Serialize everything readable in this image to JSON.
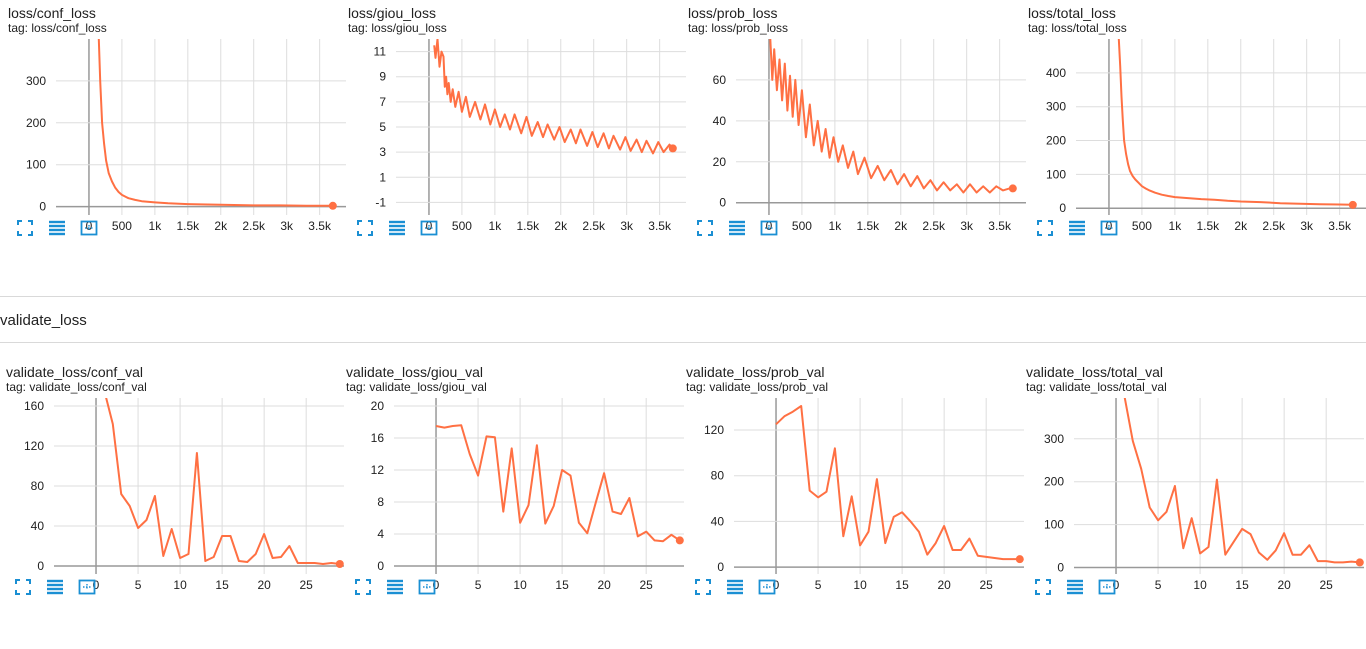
{
  "section2_title": "validate_loss",
  "colors": {
    "line": "#ff7043",
    "grid": "#dddddd",
    "zero": "#999999",
    "toolbar": "#1a8fd3"
  },
  "toolbar_icons": [
    "fit-to-screen-icon",
    "toggle-log-icon",
    "reset-zoom-icon"
  ],
  "cards": [
    {
      "title": "loss/conf_loss",
      "tag": "tag: loss/conf_loss"
    },
    {
      "title": "loss/giou_loss",
      "tag": "tag: loss/giou_loss"
    },
    {
      "title": "loss/prob_loss",
      "tag": "tag: loss/prob_loss"
    },
    {
      "title": "loss/total_loss",
      "tag": "tag: loss/total_loss"
    },
    {
      "title": "validate_loss/conf_val",
      "tag": "tag: validate_loss/conf_val"
    },
    {
      "title": "validate_loss/giou_val",
      "tag": "tag: validate_loss/giou_val"
    },
    {
      "title": "validate_loss/prob_val",
      "tag": "tag: validate_loss/prob_val"
    },
    {
      "title": "validate_loss/total_val",
      "tag": "tag: validate_loss/total_val"
    }
  ],
  "chart_data": [
    {
      "type": "line",
      "xlim": [
        -500,
        3900
      ],
      "ylim": [
        -20,
        400
      ],
      "xticks": [
        0,
        500,
        1000,
        1500,
        2000,
        2500,
        3000,
        3500
      ],
      "xticklabels": [
        "0",
        "500",
        "1k",
        "1.5k",
        "2k",
        "2.5k",
        "3k",
        "3.5k"
      ],
      "yticks": [
        0,
        100,
        200,
        300
      ],
      "yticklabels": [
        "0",
        "100",
        "200",
        "300"
      ],
      "series": [
        {
          "x": [
            150,
            170,
            200,
            230,
            260,
            300,
            350,
            400,
            450,
            500,
            600,
            700,
            800,
            1000,
            1200,
            1500,
            1800,
            2100,
            2500,
            2900,
            3300,
            3700
          ],
          "y": [
            400,
            300,
            200,
            150,
            110,
            80,
            60,
            45,
            35,
            28,
            20,
            16,
            13,
            10,
            8,
            6,
            5,
            4,
            3,
            3,
            2,
            2
          ]
        }
      ]
    },
    {
      "type": "line",
      "xlim": [
        -500,
        3900
      ],
      "ylim": [
        -2,
        12
      ],
      "xticks": [
        0,
        500,
        1000,
        1500,
        2000,
        2500,
        3000,
        3500
      ],
      "xticklabels": [
        "0",
        "500",
        "1k",
        "1.5k",
        "2k",
        "2.5k",
        "3k",
        "3.5k"
      ],
      "yticks": [
        -1,
        1,
        3,
        5,
        7,
        9,
        11
      ],
      "yticklabels": [
        "-1",
        "1",
        "3",
        "5",
        "7",
        "9",
        "11"
      ],
      "series": [
        {
          "x": [
            80,
            100,
            130,
            160,
            190,
            220,
            240,
            260,
            280,
            300,
            330,
            360,
            400,
            450,
            500,
            560,
            620,
            700,
            780,
            850,
            930,
            1000,
            1080,
            1150,
            1230,
            1300,
            1400,
            1480,
            1560,
            1650,
            1730,
            1800,
            1900,
            1980,
            2060,
            2150,
            2230,
            2300,
            2400,
            2480,
            2560,
            2650,
            2730,
            2800,
            2900,
            2980,
            3060,
            3150,
            3230,
            3300,
            3400,
            3480,
            3560,
            3650,
            3700
          ],
          "y": [
            11.5,
            10.5,
            12,
            9.8,
            11,
            10.6,
            8.2,
            9,
            7.6,
            8.5,
            7,
            8,
            6.6,
            7.8,
            6.2,
            7.4,
            5.8,
            7,
            5.6,
            6.8,
            5.2,
            6.4,
            5,
            6,
            4.8,
            6,
            4.5,
            5.8,
            4.3,
            5.4,
            4.2,
            5.2,
            4,
            5,
            3.8,
            4.8,
            3.7,
            4.8,
            3.5,
            4.6,
            3.4,
            4.5,
            3.3,
            4.3,
            3.2,
            4.2,
            3.1,
            4,
            3,
            3.9,
            2.9,
            3.8,
            3,
            3.6,
            3.3
          ]
        }
      ]
    },
    {
      "type": "line",
      "xlim": [
        -500,
        3900
      ],
      "ylim": [
        -6,
        80
      ],
      "xticks": [
        0,
        500,
        1000,
        1500,
        2000,
        2500,
        3000,
        3500
      ],
      "xticklabels": [
        "0",
        "500",
        "1k",
        "1.5k",
        "2k",
        "2.5k",
        "3k",
        "3.5k"
      ],
      "yticks": [
        0,
        20,
        40,
        60
      ],
      "yticklabels": [
        "0",
        "20",
        "40",
        "60"
      ],
      "series": [
        {
          "x": [
            20,
            50,
            80,
            120,
            160,
            200,
            240,
            280,
            320,
            360,
            400,
            450,
            500,
            560,
            620,
            680,
            740,
            800,
            860,
            920,
            980,
            1050,
            1120,
            1200,
            1280,
            1350,
            1450,
            1550,
            1650,
            1750,
            1850,
            1950,
            2050,
            2150,
            2250,
            2350,
            2450,
            2550,
            2650,
            2750,
            2850,
            2950,
            3050,
            3150,
            3250,
            3350,
            3450,
            3550,
            3650,
            3700
          ],
          "y": [
            80,
            60,
            75,
            55,
            70,
            50,
            68,
            45,
            62,
            42,
            60,
            38,
            55,
            32,
            48,
            28,
            40,
            25,
            36,
            22,
            32,
            20,
            28,
            17,
            25,
            14,
            22,
            12,
            18,
            11,
            16,
            9,
            14,
            8,
            13,
            7,
            11,
            6,
            10,
            6,
            9,
            5,
            9,
            5,
            8,
            5,
            8,
            6,
            7,
            7
          ]
        }
      ]
    },
    {
      "type": "line",
      "xlim": [
        -500,
        3900
      ],
      "ylim": [
        -20,
        500
      ],
      "xticks": [
        0,
        500,
        1000,
        1500,
        2000,
        2500,
        3000,
        3500
      ],
      "xticklabels": [
        "0",
        "500",
        "1k",
        "1.5k",
        "2k",
        "2.5k",
        "3k",
        "3.5k"
      ],
      "yticks": [
        0,
        100,
        200,
        300,
        400
      ],
      "yticklabels": [
        "0",
        "100",
        "200",
        "300",
        "400"
      ],
      "series": [
        {
          "x": [
            150,
            170,
            190,
            210,
            230,
            260,
            290,
            320,
            360,
            400,
            450,
            500,
            560,
            620,
            700,
            800,
            900,
            1000,
            1200,
            1400,
            1600,
            1800,
            2000,
            2300,
            2600,
            2900,
            3200,
            3500,
            3700
          ],
          "y": [
            500,
            420,
            330,
            260,
            200,
            160,
            130,
            110,
            95,
            85,
            75,
            65,
            58,
            52,
            46,
            40,
            36,
            33,
            30,
            27,
            25,
            22,
            20,
            18,
            15,
            13,
            12,
            11,
            10
          ]
        }
      ]
    },
    {
      "type": "line",
      "xlim": [
        -5,
        29.5
      ],
      "ylim": [
        -8,
        168
      ],
      "xticks": [
        0,
        5,
        10,
        15,
        20,
        25
      ],
      "xticklabels": [
        "0",
        "5",
        "10",
        "15",
        "20",
        "25"
      ],
      "yticks": [
        0,
        40,
        80,
        120,
        160
      ],
      "yticklabels": [
        "0",
        "40",
        "80",
        "120",
        "160"
      ],
      "series": [
        {
          "x": [
            1,
            2,
            3,
            4,
            5,
            6,
            7,
            8,
            9,
            10,
            11,
            12,
            13,
            14,
            15,
            16,
            17,
            18,
            19,
            20,
            21,
            22,
            23,
            24,
            25,
            26,
            27,
            28,
            29
          ],
          "y": [
            175,
            142,
            72,
            60,
            38,
            46,
            70,
            10,
            37,
            8,
            12,
            113,
            5,
            9,
            30,
            30,
            5,
            4,
            12,
            32,
            8,
            9,
            20,
            3,
            3,
            3,
            2,
            3,
            2
          ]
        }
      ]
    },
    {
      "type": "line",
      "xlim": [
        -5,
        29.5
      ],
      "ylim": [
        -1,
        21
      ],
      "xticks": [
        0,
        5,
        10,
        15,
        20,
        25
      ],
      "xticklabels": [
        "0",
        "5",
        "10",
        "15",
        "20",
        "25"
      ],
      "yticks": [
        0,
        4,
        8,
        12,
        16,
        20
      ],
      "yticklabels": [
        "0",
        "4",
        "8",
        "12",
        "16",
        "20"
      ],
      "series": [
        {
          "x": [
            0,
            1,
            2,
            3,
            4,
            5,
            6,
            7,
            8,
            9,
            10,
            11,
            12,
            13,
            14,
            15,
            16,
            17,
            18,
            19,
            20,
            21,
            22,
            23,
            24,
            25,
            26,
            27,
            28,
            29
          ],
          "y": [
            17.5,
            17.3,
            17.5,
            17.6,
            14,
            11.3,
            16.2,
            16.1,
            6.8,
            14.7,
            5.4,
            7.6,
            15.1,
            5.3,
            7.5,
            12,
            11.3,
            5.4,
            4.1,
            7.9,
            11.6,
            6.8,
            6.5,
            8.5,
            3.7,
            4.3,
            3.2,
            3.1,
            3.9,
            3.2
          ]
        }
      ]
    },
    {
      "type": "line",
      "xlim": [
        -5,
        29.5
      ],
      "ylim": [
        -6,
        148
      ],
      "xticks": [
        0,
        5,
        10,
        15,
        20,
        25
      ],
      "xticklabels": [
        "0",
        "5",
        "10",
        "15",
        "20",
        "25"
      ],
      "yticks": [
        0,
        40,
        80,
        120
      ],
      "yticklabels": [
        "0",
        "40",
        "80",
        "120"
      ],
      "series": [
        {
          "x": [
            0,
            1,
            2,
            3,
            4,
            5,
            6,
            7,
            8,
            9,
            10,
            11,
            12,
            13,
            14,
            15,
            16,
            17,
            18,
            19,
            20,
            21,
            22,
            23,
            24,
            25,
            26,
            27,
            28,
            29
          ],
          "y": [
            125,
            132,
            136,
            141,
            67,
            61,
            66,
            104,
            27,
            62,
            19,
            31,
            77,
            21,
            44,
            48,
            40,
            31,
            11,
            21,
            36,
            15,
            15,
            25,
            10,
            9,
            8,
            7,
            7,
            7
          ]
        }
      ]
    },
    {
      "type": "line",
      "xlim": [
        -5,
        29.5
      ],
      "ylim": [
        -15,
        395
      ],
      "xticks": [
        0,
        5,
        10,
        15,
        20,
        25
      ],
      "xticklabels": [
        "0",
        "5",
        "10",
        "15",
        "20",
        "25"
      ],
      "yticks": [
        0,
        100,
        200,
        300
      ],
      "yticklabels": [
        "0",
        "100",
        "200",
        "300"
      ],
      "series": [
        {
          "x": [
            1,
            2,
            3,
            4,
            5,
            6,
            7,
            8,
            9,
            10,
            11,
            12,
            13,
            14,
            15,
            16,
            17,
            18,
            19,
            20,
            21,
            22,
            23,
            24,
            25,
            26,
            27,
            28,
            29
          ],
          "y": [
            400,
            295,
            230,
            140,
            110,
            130,
            190,
            45,
            115,
            33,
            48,
            205,
            30,
            60,
            90,
            78,
            35,
            18,
            40,
            80,
            30,
            30,
            52,
            15,
            15,
            12,
            12,
            14,
            12
          ]
        }
      ]
    }
  ]
}
